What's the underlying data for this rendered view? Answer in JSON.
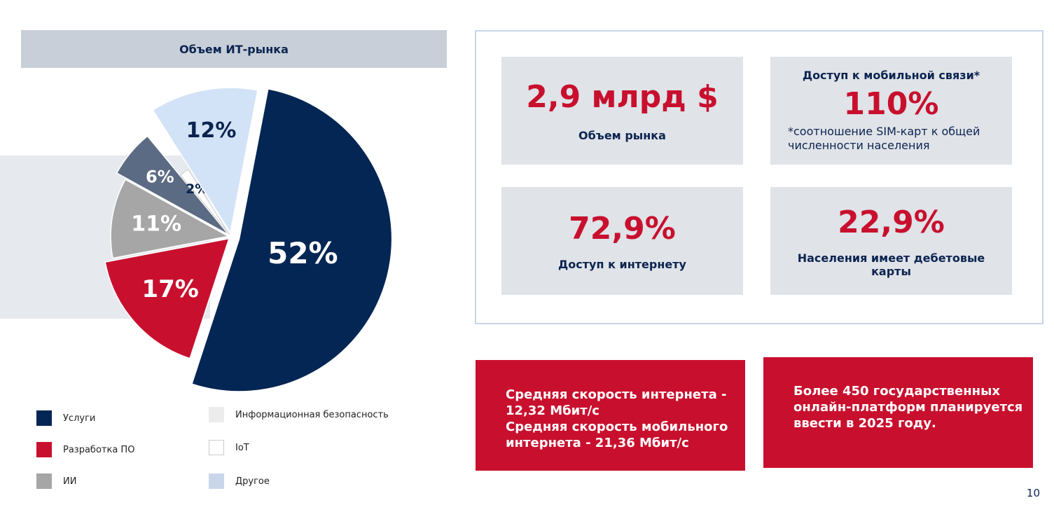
{
  "chart_data": {
    "type": "pie",
    "title": "Объем ИТ-рынка",
    "slices": [
      {
        "name": "Услуги",
        "value": 52,
        "label": "52%",
        "color": "#042654",
        "label_color": "#ffffff"
      },
      {
        "name": "Разработка ПО",
        "value": 17,
        "label": "17%",
        "color": "#c8102e",
        "label_color": "#ffffff"
      },
      {
        "name": "ИИ",
        "value": 11,
        "label": "11%",
        "color": "#a6a6a6",
        "label_color": "#ffffff"
      },
      {
        "name": "Информационная безопасность",
        "value": 6,
        "label": "6%",
        "color": "#5c6b84",
        "label_color": "#ffffff"
      },
      {
        "name": "IoT",
        "value": 2,
        "label": "2%",
        "color": "#ffffff",
        "label_color": "#0b2450"
      },
      {
        "name": "Другое",
        "value": 12,
        "label": "12%",
        "color": "#d3e3f7",
        "label_color": "#0b2450"
      }
    ],
    "legend": [
      {
        "label": "Услуги",
        "color": "#042654"
      },
      {
        "label": "Разработка ПО",
        "color": "#c8102e"
      },
      {
        "label": "ИИ",
        "color": "#a6a6a6"
      },
      {
        "label": "Информационная безопасность",
        "color": "#ececec"
      },
      {
        "label": "IoT",
        "color": "#ffffff"
      },
      {
        "label": "Другое",
        "color": "#c9d6ea"
      }
    ]
  },
  "stats": {
    "market_volume": {
      "value": "2,9 млрд $",
      "label": "Объем рынка"
    },
    "mobile_access": {
      "title": "Доступ к мобильной связи*",
      "value": "110%",
      "note_line1": "*соотношение SIM-карт к общей",
      "note_line2": "численности населения"
    },
    "internet_access": {
      "value": "72,9%",
      "label": "Доступ к интернету"
    },
    "debit_cards": {
      "value": "22,9%",
      "label_line1": "Населения имеет дебетовые",
      "label_line2": "карты"
    }
  },
  "speed_box": {
    "line1": "Средняя скорость интернета -",
    "line2": "12,32 Мбит/с",
    "line3": "Средняя скорость мобильного",
    "line4": "интернета - 21,36 Мбит/с"
  },
  "platforms_box": {
    "line1": "Более 450 государственных",
    "line2": "онлайн-платформ планируется",
    "line3": "ввести в 2025 году."
  },
  "page_number": "10",
  "colors": {
    "accent_red": "#c8102e",
    "navy": "#0b2450",
    "panel_gray": "#e0e3e8"
  }
}
